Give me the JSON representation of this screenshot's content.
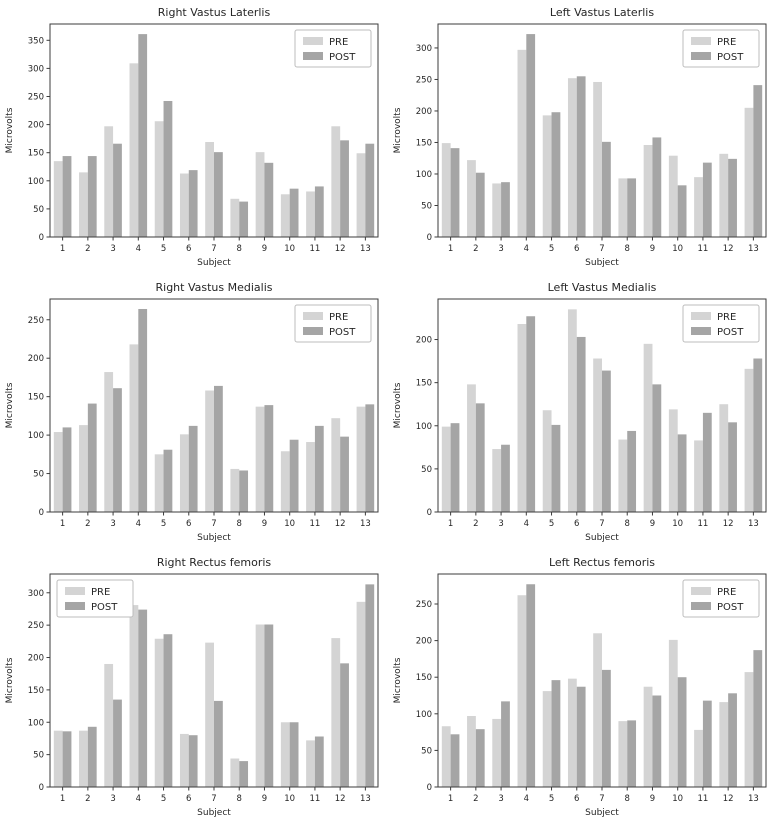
{
  "page": {
    "background": "#ffffff"
  },
  "colors": {
    "pre": "#d4d4d4",
    "post": "#a5a5a5",
    "axis": "#3b3b3b",
    "text": "#262626",
    "legend_border": "#bdbdbd",
    "legend_background": "#ffffff"
  },
  "chart_data": [
    {
      "type": "bar",
      "title": "Right Vastus Laterlis",
      "xlabel": "Subject",
      "ylabel": "Microvolts",
      "categories": [
        "1",
        "2",
        "3",
        "4",
        "5",
        "6",
        "7",
        "8",
        "9",
        "10",
        "11",
        "12",
        "13"
      ],
      "series": [
        {
          "name": "PRE",
          "values": [
            135,
            115,
            197,
            309,
            206,
            113,
            169,
            68,
            151,
            76,
            81,
            197,
            149
          ]
        },
        {
          "name": "POST",
          "values": [
            144,
            144,
            166,
            361,
            242,
            119,
            151,
            63,
            132,
            86,
            90,
            172,
            166
          ]
        }
      ],
      "ylim": [
        0,
        379
      ],
      "yticks": [
        0,
        50,
        100,
        150,
        200,
        250,
        300,
        350
      ],
      "legend_position": "top-right",
      "grid": false
    },
    {
      "type": "bar",
      "title": "Left Vastus Laterlis",
      "xlabel": "Subject",
      "ylabel": "Microvolts",
      "categories": [
        "1",
        "2",
        "3",
        "4",
        "5",
        "6",
        "7",
        "8",
        "9",
        "10",
        "11",
        "12",
        "13"
      ],
      "series": [
        {
          "name": "PRE",
          "values": [
            149,
            122,
            85,
            297,
            193,
            252,
            246,
            93,
            146,
            129,
            95,
            132,
            205
          ]
        },
        {
          "name": "POST",
          "values": [
            141,
            102,
            87,
            322,
            198,
            255,
            151,
            93,
            158,
            82,
            118,
            124,
            241
          ]
        }
      ],
      "ylim": [
        0,
        338
      ],
      "yticks": [
        0,
        50,
        100,
        150,
        200,
        250,
        300
      ],
      "legend_position": "top-right",
      "grid": false
    },
    {
      "type": "bar",
      "title": "Right Vastus Medialis",
      "xlabel": "Subject",
      "ylabel": "Microvolts",
      "categories": [
        "1",
        "2",
        "3",
        "4",
        "5",
        "6",
        "7",
        "8",
        "9",
        "10",
        "11",
        "12",
        "13"
      ],
      "series": [
        {
          "name": "PRE",
          "values": [
            104,
            113,
            182,
            218,
            75,
            101,
            158,
            56,
            137,
            79,
            91,
            122,
            137
          ]
        },
        {
          "name": "POST",
          "values": [
            110,
            141,
            161,
            264,
            81,
            112,
            164,
            54,
            139,
            94,
            112,
            98,
            140
          ]
        }
      ],
      "ylim": [
        0,
        277
      ],
      "yticks": [
        0,
        50,
        100,
        150,
        200,
        250
      ],
      "legend_position": "top-right",
      "grid": false
    },
    {
      "type": "bar",
      "title": "Left Vastus Medialis",
      "xlabel": "Subject",
      "ylabel": "Microvolts",
      "categories": [
        "1",
        "2",
        "3",
        "4",
        "5",
        "6",
        "7",
        "8",
        "9",
        "10",
        "11",
        "12",
        "13"
      ],
      "series": [
        {
          "name": "PRE",
          "values": [
            99,
            148,
            73,
            218,
            118,
            235,
            178,
            84,
            195,
            119,
            83,
            125,
            166
          ]
        },
        {
          "name": "POST",
          "values": [
            103,
            126,
            78,
            227,
            101,
            203,
            164,
            94,
            148,
            90,
            115,
            104,
            178
          ]
        }
      ],
      "ylim": [
        0,
        247
      ],
      "yticks": [
        0,
        50,
        100,
        150,
        200
      ],
      "legend_position": "top-right",
      "grid": false
    },
    {
      "type": "bar",
      "title": "Right Rectus femoris",
      "xlabel": "Subject",
      "ylabel": "Microvolts",
      "categories": [
        "1",
        "2",
        "3",
        "4",
        "5",
        "6",
        "7",
        "8",
        "9",
        "10",
        "11",
        "12",
        "13"
      ],
      "series": [
        {
          "name": "PRE",
          "values": [
            87,
            87,
            190,
            281,
            229,
            82,
            223,
            44,
            251,
            100,
            72,
            230,
            286
          ]
        },
        {
          "name": "POST",
          "values": [
            86,
            93,
            135,
            274,
            236,
            80,
            133,
            40,
            251,
            100,
            78,
            191,
            313
          ]
        }
      ],
      "ylim": [
        0,
        329
      ],
      "yticks": [
        0,
        50,
        100,
        150,
        200,
        250,
        300
      ],
      "legend_position": "top-left",
      "grid": false
    },
    {
      "type": "bar",
      "title": "Left Rectus femoris",
      "xlabel": "Subject",
      "ylabel": "Microvolts",
      "categories": [
        "1",
        "2",
        "3",
        "4",
        "5",
        "6",
        "7",
        "8",
        "9",
        "10",
        "11",
        "12",
        "13"
      ],
      "series": [
        {
          "name": "PRE",
          "values": [
            83,
            97,
            93,
            262,
            131,
            148,
            210,
            90,
            137,
            201,
            78,
            116,
            157
          ]
        },
        {
          "name": "POST",
          "values": [
            72,
            79,
            117,
            277,
            146,
            137,
            160,
            91,
            125,
            150,
            118,
            128,
            187
          ]
        }
      ],
      "ylim": [
        0,
        291
      ],
      "yticks": [
        0,
        50,
        100,
        150,
        200,
        250
      ],
      "legend_position": "top-right",
      "grid": false
    }
  ]
}
